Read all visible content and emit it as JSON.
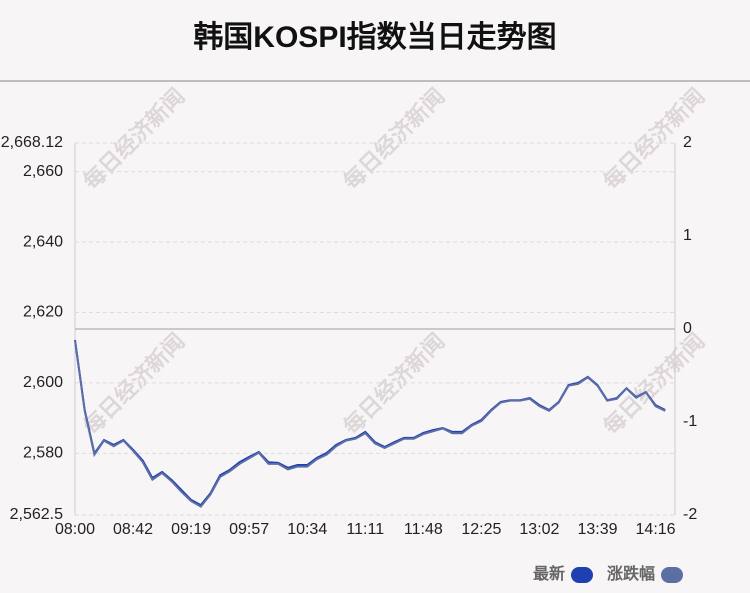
{
  "chart_data": {
    "type": "line",
    "title": "韩国KOSPI指数当日走势图",
    "watermark": "每日经济新闻",
    "categories": [
      "08:00",
      null,
      null,
      null,
      null,
      null,
      "08:42",
      null,
      null,
      null,
      null,
      null,
      "09:19",
      null,
      null,
      null,
      null,
      null,
      "09:57",
      null,
      null,
      null,
      null,
      null,
      "10:34",
      null,
      null,
      null,
      null,
      null,
      "11:11",
      null,
      null,
      null,
      null,
      null,
      "11:48",
      null,
      null,
      null,
      null,
      null,
      "12:25",
      null,
      null,
      null,
      null,
      null,
      "13:02",
      null,
      null,
      null,
      null,
      null,
      "13:39",
      null,
      null,
      null,
      null,
      null,
      "14:16",
      null
    ],
    "series": [
      {
        "name": "最新",
        "color": "#1e40b0",
        "values": [
          2612.2,
          2592.3,
          2580,
          2583.8,
          2582.4,
          2583.8,
          2581,
          2578,
          2573,
          2574.7,
          2572.4,
          2569.6,
          2566.8,
          2565.3,
          2568.7,
          2573.8,
          2575.3,
          2577.5,
          2579,
          2580.4,
          2577.5,
          2577.3,
          2575.9,
          2576.7,
          2576.7,
          2578.7,
          2580.1,
          2582.4,
          2583.8,
          2584.4,
          2586.1,
          2583.2,
          2581.8,
          2583.2,
          2584.4,
          2584.4,
          2585.8,
          2586.6,
          2587.2,
          2586.1,
          2586.1,
          2588.1,
          2589.5,
          2592.3,
          2594.6,
          2595.1,
          2595.1,
          2595.7,
          2593.7,
          2592.3,
          2594.6,
          2599.4,
          2600,
          2601.7,
          2599.4,
          2595.1,
          2595.7,
          2598.5,
          2596,
          2597.4,
          2593.7,
          2592.3
        ]
      },
      {
        "name": "涨跌幅",
        "color": "#5b6fa5",
        "axis": "y2",
        "values": [
          -0.12,
          -0.88,
          -1.35,
          -1.2,
          -1.26,
          -1.2,
          -1.31,
          -1.43,
          -1.62,
          -1.55,
          -1.64,
          -1.75,
          -1.85,
          -1.91,
          -1.78,
          -1.59,
          -1.53,
          -1.45,
          -1.39,
          -1.33,
          -1.45,
          -1.45,
          -1.51,
          -1.48,
          -1.48,
          -1.4,
          -1.35,
          -1.26,
          -1.2,
          -1.18,
          -1.12,
          -1.23,
          -1.28,
          -1.23,
          -1.18,
          -1.18,
          -1.13,
          -1.1,
          -1.07,
          -1.12,
          -1.12,
          -1.04,
          -0.99,
          -0.88,
          -0.79,
          -0.77,
          -0.77,
          -0.75,
          -0.83,
          -0.88,
          -0.79,
          -0.61,
          -0.59,
          -0.52,
          -0.61,
          -0.77,
          -0.75,
          -0.64,
          -0.74,
          -0.68,
          -0.83,
          -0.88
        ]
      }
    ],
    "ylim": [
      2562.5,
      2668.12
    ],
    "yticks": [
      {
        "value": 2562.5,
        "label": "2,562.5"
      },
      {
        "value": 2580,
        "label": "2,580"
      },
      {
        "value": 2600,
        "label": "2,600"
      },
      {
        "value": 2620,
        "label": "2,620"
      },
      {
        "value": 2640,
        "label": "2,640"
      },
      {
        "value": 2660,
        "label": "2,660"
      },
      {
        "value": 2668.12,
        "label": "2,668.12"
      }
    ],
    "y2lim": [
      -2,
      2
    ],
    "y2ticks": [
      -2,
      -1,
      0,
      1,
      2
    ],
    "grid": true,
    "legend": "bottom-right"
  }
}
